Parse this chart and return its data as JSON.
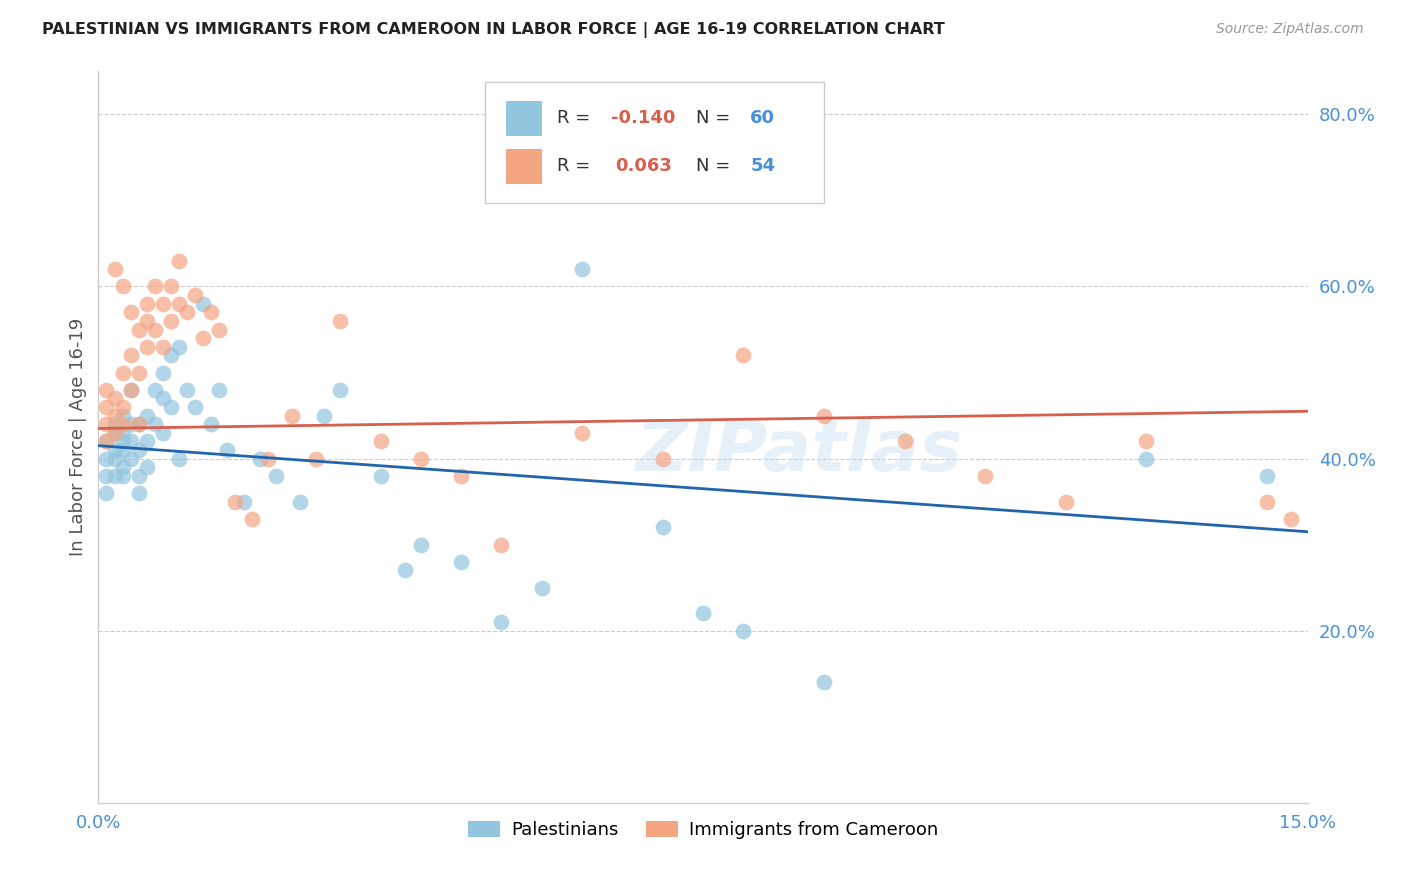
{
  "title": "PALESTINIAN VS IMMIGRANTS FROM CAMEROON IN LABOR FORCE | AGE 16-19 CORRELATION CHART",
  "source": "Source: ZipAtlas.com",
  "ylabel_label": "In Labor Force | Age 16-19",
  "xlim": [
    0.0,
    0.15
  ],
  "ylim": [
    0.0,
    0.85
  ],
  "blue_R": -0.14,
  "blue_N": 60,
  "pink_R": 0.063,
  "pink_N": 54,
  "blue_color": "#92c5de",
  "pink_color": "#f4a582",
  "blue_line_color": "#2166ac",
  "pink_line_color": "#d6604d",
  "legend_label_blue": "Palestinians",
  "legend_label_pink": "Immigrants from Cameroon",
  "blue_scatter_x": [
    0.001,
    0.001,
    0.001,
    0.001,
    0.002,
    0.002,
    0.002,
    0.002,
    0.002,
    0.003,
    0.003,
    0.003,
    0.003,
    0.003,
    0.003,
    0.004,
    0.004,
    0.004,
    0.004,
    0.005,
    0.005,
    0.005,
    0.005,
    0.006,
    0.006,
    0.006,
    0.007,
    0.007,
    0.008,
    0.008,
    0.008,
    0.009,
    0.009,
    0.01,
    0.01,
    0.011,
    0.012,
    0.013,
    0.014,
    0.015,
    0.016,
    0.018,
    0.02,
    0.022,
    0.025,
    0.028,
    0.03,
    0.035,
    0.038,
    0.04,
    0.045,
    0.05,
    0.055,
    0.06,
    0.07,
    0.075,
    0.08,
    0.09,
    0.13,
    0.145
  ],
  "blue_scatter_y": [
    0.38,
    0.4,
    0.42,
    0.36,
    0.41,
    0.43,
    0.38,
    0.44,
    0.4,
    0.41,
    0.43,
    0.38,
    0.45,
    0.42,
    0.39,
    0.48,
    0.44,
    0.4,
    0.42,
    0.44,
    0.41,
    0.38,
    0.36,
    0.45,
    0.42,
    0.39,
    0.48,
    0.44,
    0.5,
    0.47,
    0.43,
    0.52,
    0.46,
    0.53,
    0.4,
    0.48,
    0.46,
    0.58,
    0.44,
    0.48,
    0.41,
    0.35,
    0.4,
    0.38,
    0.35,
    0.45,
    0.48,
    0.38,
    0.27,
    0.3,
    0.28,
    0.21,
    0.25,
    0.62,
    0.32,
    0.22,
    0.2,
    0.14,
    0.4,
    0.38
  ],
  "pink_scatter_x": [
    0.001,
    0.001,
    0.001,
    0.001,
    0.002,
    0.002,
    0.002,
    0.002,
    0.003,
    0.003,
    0.003,
    0.003,
    0.004,
    0.004,
    0.004,
    0.005,
    0.005,
    0.005,
    0.006,
    0.006,
    0.006,
    0.007,
    0.007,
    0.008,
    0.008,
    0.009,
    0.009,
    0.01,
    0.01,
    0.011,
    0.012,
    0.013,
    0.014,
    0.015,
    0.017,
    0.019,
    0.021,
    0.024,
    0.027,
    0.03,
    0.035,
    0.04,
    0.045,
    0.05,
    0.06,
    0.07,
    0.08,
    0.09,
    0.1,
    0.11,
    0.12,
    0.13,
    0.145,
    0.148
  ],
  "pink_scatter_y": [
    0.44,
    0.46,
    0.42,
    0.48,
    0.43,
    0.47,
    0.45,
    0.62,
    0.5,
    0.46,
    0.44,
    0.6,
    0.52,
    0.48,
    0.57,
    0.55,
    0.5,
    0.44,
    0.58,
    0.53,
    0.56,
    0.6,
    0.55,
    0.58,
    0.53,
    0.6,
    0.56,
    0.63,
    0.58,
    0.57,
    0.59,
    0.54,
    0.57,
    0.55,
    0.35,
    0.33,
    0.4,
    0.45,
    0.4,
    0.56,
    0.42,
    0.4,
    0.38,
    0.3,
    0.43,
    0.4,
    0.52,
    0.45,
    0.42,
    0.38,
    0.35,
    0.42,
    0.35,
    0.33
  ]
}
